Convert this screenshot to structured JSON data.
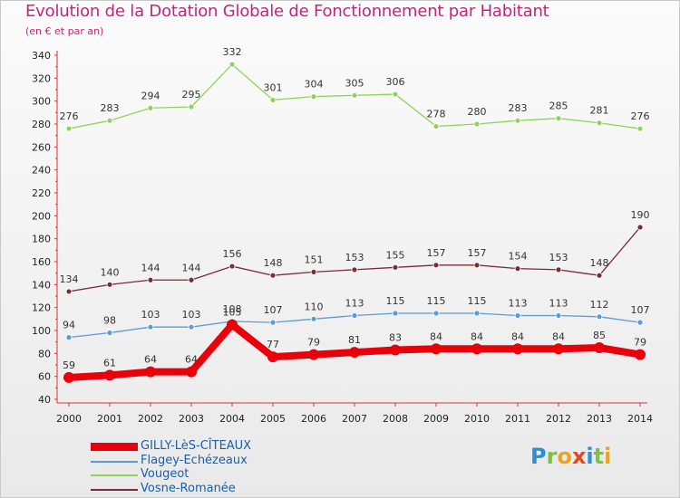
{
  "title": "Evolution de la Dotation Globale de Fonctionnement par Habitant",
  "subtitle": "(en € et par an)",
  "logo_text": "Proxiti",
  "chart_data": {
    "type": "line",
    "x": [
      "2000",
      "2001",
      "2002",
      "2003",
      "2004",
      "2005",
      "2006",
      "2007",
      "2008",
      "2009",
      "2010",
      "2011",
      "2012",
      "2013",
      "2014"
    ],
    "ylim": [
      40,
      340
    ],
    "yticks": [
      40,
      60,
      80,
      100,
      120,
      140,
      160,
      180,
      200,
      220,
      240,
      260,
      280,
      300,
      320,
      340
    ],
    "grid": false,
    "legend_position": "bottom-left",
    "series": [
      {
        "name": "GILLY-LèS-CÎTEAUX",
        "color": "#e8000b",
        "emphasis": true,
        "values": [
          59,
          61,
          64,
          64,
          105,
          77,
          79,
          81,
          83,
          84,
          84,
          84,
          84,
          85,
          79
        ]
      },
      {
        "name": "Flagey-Echézeaux",
        "color": "#5b9bd5",
        "values": [
          94,
          98,
          103,
          103,
          108,
          107,
          110,
          113,
          115,
          115,
          115,
          113,
          113,
          112,
          107
        ]
      },
      {
        "name": "Vougeot",
        "color": "#8fd45a",
        "values": [
          276,
          283,
          294,
          295,
          332,
          301,
          304,
          305,
          306,
          278,
          280,
          283,
          285,
          281,
          276
        ]
      },
      {
        "name": "Vosne-Romanée",
        "color": "#7a2b35",
        "values": [
          134,
          140,
          144,
          144,
          156,
          148,
          151,
          153,
          155,
          157,
          157,
          154,
          153,
          148,
          190
        ]
      }
    ]
  }
}
